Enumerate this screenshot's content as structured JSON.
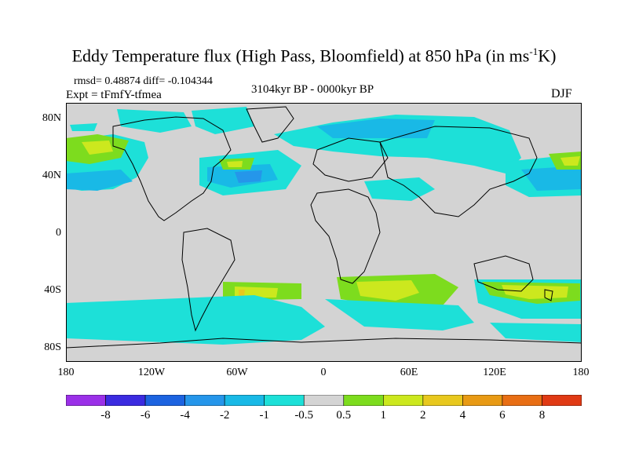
{
  "title_main": "Eddy Temperature flux (High Pass, Bloomfield) at 850 hPa (in ms",
  "title_sup": "-1",
  "title_end": "K)",
  "stats": "rmsd= 0.48874 diff= -0.104344",
  "expt": "Expt = tFmfY-tfmea",
  "period": "3104kyr BP - 0000kyr BP",
  "season": "DJF",
  "lat_ticks": [
    "80N",
    "40N",
    "0",
    "40S",
    "80S"
  ],
  "lon_ticks": [
    "180",
    "120W",
    "60W",
    "0",
    "60E",
    "120E",
    "180"
  ],
  "colorbar": {
    "labels": [
      "-8",
      "-6",
      "-4",
      "-2",
      "-1",
      "-0.5",
      "0.5",
      "1",
      "2",
      "4",
      "6",
      "8"
    ],
    "colors": [
      "#9b30e8",
      "#3b2be0",
      "#1c63e0",
      "#2596ea",
      "#19b9e6",
      "#1de0d8",
      "#d4d4d4",
      "#7ddc1e",
      "#cce81e",
      "#e8c81e",
      "#e89a14",
      "#e86e14",
      "#e03a14"
    ]
  },
  "map_colors": {
    "background": "#d3d3d3",
    "coast": "#000000"
  }
}
